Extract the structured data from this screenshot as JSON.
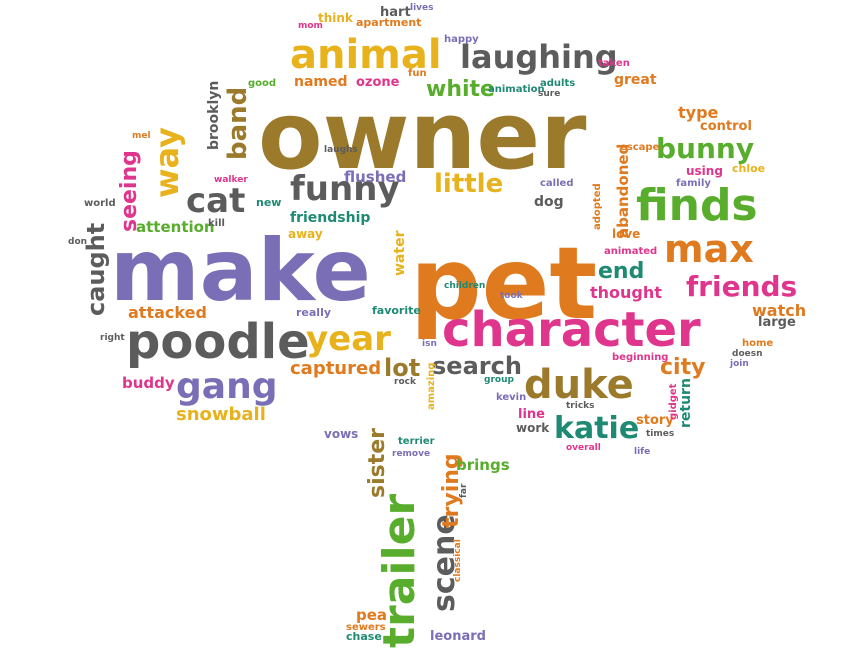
{
  "palette": {
    "brown": "#9b7a2c",
    "purple": "#7a6fb6",
    "orange": "#e07a1e",
    "magenta": "#e0358c",
    "gray": "#5c5c5c",
    "green": "#58ad2c",
    "yellow": "#e8b21c",
    "teal": "#1f8a73"
  },
  "words": [
    {
      "text": "owner",
      "color": "brown"
    },
    {
      "text": "make",
      "color": "purple"
    },
    {
      "text": "pet",
      "color": "orange"
    },
    {
      "text": "character",
      "color": "magenta"
    },
    {
      "text": "poodle",
      "color": "gray"
    },
    {
      "text": "animal",
      "color": "yellow"
    },
    {
      "text": "finds",
      "color": "green"
    },
    {
      "text": "max",
      "color": "orange"
    },
    {
      "text": "duke",
      "color": "brown"
    },
    {
      "text": "trailer",
      "color": "green"
    },
    {
      "text": "gang",
      "color": "purple"
    },
    {
      "text": "laughing",
      "color": "gray"
    },
    {
      "text": "funny",
      "color": "gray"
    },
    {
      "text": "cat",
      "color": "gray"
    },
    {
      "text": "year",
      "color": "yellow"
    },
    {
      "text": "way",
      "color": "yellow"
    },
    {
      "text": "friends",
      "color": "magenta"
    },
    {
      "text": "bunny",
      "color": "green"
    },
    {
      "text": "katie",
      "color": "teal"
    },
    {
      "text": "band",
      "color": "brown"
    },
    {
      "text": "scene",
      "color": "gray"
    },
    {
      "text": "caught",
      "color": "gray"
    },
    {
      "text": "little",
      "color": "yellow"
    },
    {
      "text": "search",
      "color": "gray"
    },
    {
      "text": "end",
      "color": "teal"
    },
    {
      "text": "city",
      "color": "orange"
    },
    {
      "text": "lot",
      "color": "brown"
    },
    {
      "text": "seeing",
      "color": "magenta"
    },
    {
      "text": "white",
      "color": "green"
    },
    {
      "text": "sister",
      "color": "brown"
    },
    {
      "text": "trying",
      "color": "orange"
    },
    {
      "text": "snowball",
      "color": "yellow"
    },
    {
      "text": "captured",
      "color": "orange"
    },
    {
      "text": "thought",
      "color": "magenta"
    },
    {
      "text": "attacked",
      "color": "orange"
    },
    {
      "text": "attention",
      "color": "green"
    },
    {
      "text": "buddy",
      "color": "magenta"
    },
    {
      "text": "flushed",
      "color": "purple"
    },
    {
      "text": "friendship",
      "color": "teal"
    },
    {
      "text": "named",
      "color": "orange"
    },
    {
      "text": "type",
      "color": "orange"
    },
    {
      "text": "watch",
      "color": "orange"
    },
    {
      "text": "brooklyn",
      "color": "gray"
    },
    {
      "text": "abandoned",
      "color": "orange"
    },
    {
      "text": "water",
      "color": "yellow"
    },
    {
      "text": "brings",
      "color": "green"
    },
    {
      "text": "leonard",
      "color": "purple"
    },
    {
      "text": "return",
      "color": "teal"
    },
    {
      "text": "great",
      "color": "orange"
    },
    {
      "text": "dog",
      "color": "gray"
    },
    {
      "text": "line",
      "color": "magenta"
    },
    {
      "text": "story",
      "color": "orange"
    },
    {
      "text": "large",
      "color": "gray"
    },
    {
      "text": "control",
      "color": "orange"
    },
    {
      "text": "vows",
      "color": "purple"
    },
    {
      "text": "ozone",
      "color": "magenta"
    },
    {
      "text": "think",
      "color": "yellow"
    },
    {
      "text": "apartment",
      "color": "orange"
    },
    {
      "text": "hart",
      "color": "gray"
    },
    {
      "text": "chase",
      "color": "teal"
    },
    {
      "text": "pea",
      "color": "orange"
    },
    {
      "text": "away",
      "color": "yellow"
    },
    {
      "text": "really",
      "color": "purple"
    },
    {
      "text": "favorite",
      "color": "teal"
    },
    {
      "text": "work",
      "color": "gray"
    },
    {
      "text": "love",
      "color": "orange"
    },
    {
      "text": "using",
      "color": "magenta"
    },
    {
      "text": "chloe",
      "color": "yellow"
    },
    {
      "text": "family",
      "color": "purple"
    },
    {
      "text": "new",
      "color": "teal"
    },
    {
      "text": "kill",
      "color": "gray"
    },
    {
      "text": "walker",
      "color": "magenta"
    },
    {
      "text": "world",
      "color": "gray"
    },
    {
      "text": "don",
      "color": "gray"
    },
    {
      "text": "right",
      "color": "gray"
    },
    {
      "text": "mel",
      "color": "orange"
    },
    {
      "text": "good",
      "color": "green"
    },
    {
      "text": "lives",
      "color": "purple"
    },
    {
      "text": "happy",
      "color": "purple"
    },
    {
      "text": "mom",
      "color": "magenta"
    },
    {
      "text": "fun",
      "color": "orange"
    },
    {
      "text": "animation",
      "color": "teal"
    },
    {
      "text": "adults",
      "color": "teal"
    },
    {
      "text": "sure",
      "color": "gray"
    },
    {
      "text": "taken",
      "color": "magenta"
    },
    {
      "text": "escape",
      "color": "orange"
    },
    {
      "text": "laughs",
      "color": "gray"
    },
    {
      "text": "called",
      "color": "purple"
    },
    {
      "text": "adopted",
      "color": "orange"
    },
    {
      "text": "animated",
      "color": "magenta"
    },
    {
      "text": "children",
      "color": "teal"
    },
    {
      "text": "took",
      "color": "purple"
    },
    {
      "text": "isn",
      "color": "purple"
    },
    {
      "text": "rock",
      "color": "gray"
    },
    {
      "text": "amazing",
      "color": "yellow"
    },
    {
      "text": "group",
      "color": "teal"
    },
    {
      "text": "kevin",
      "color": "purple"
    },
    {
      "text": "beginning",
      "color": "magenta"
    },
    {
      "text": "home",
      "color": "orange"
    },
    {
      "text": "doesn",
      "color": "gray"
    },
    {
      "text": "join",
      "color": "purple"
    },
    {
      "text": "tricks",
      "color": "gray"
    },
    {
      "text": "gidget",
      "color": "magenta"
    },
    {
      "text": "times",
      "color": "gray"
    },
    {
      "text": "life",
      "color": "purple"
    },
    {
      "text": "overall",
      "color": "magenta"
    },
    {
      "text": "terrier",
      "color": "teal"
    },
    {
      "text": "remove",
      "color": "purple"
    },
    {
      "text": "far",
      "color": "gray"
    },
    {
      "text": "classical",
      "color": "orange"
    },
    {
      "text": "sewers",
      "color": "orange"
    }
  ]
}
